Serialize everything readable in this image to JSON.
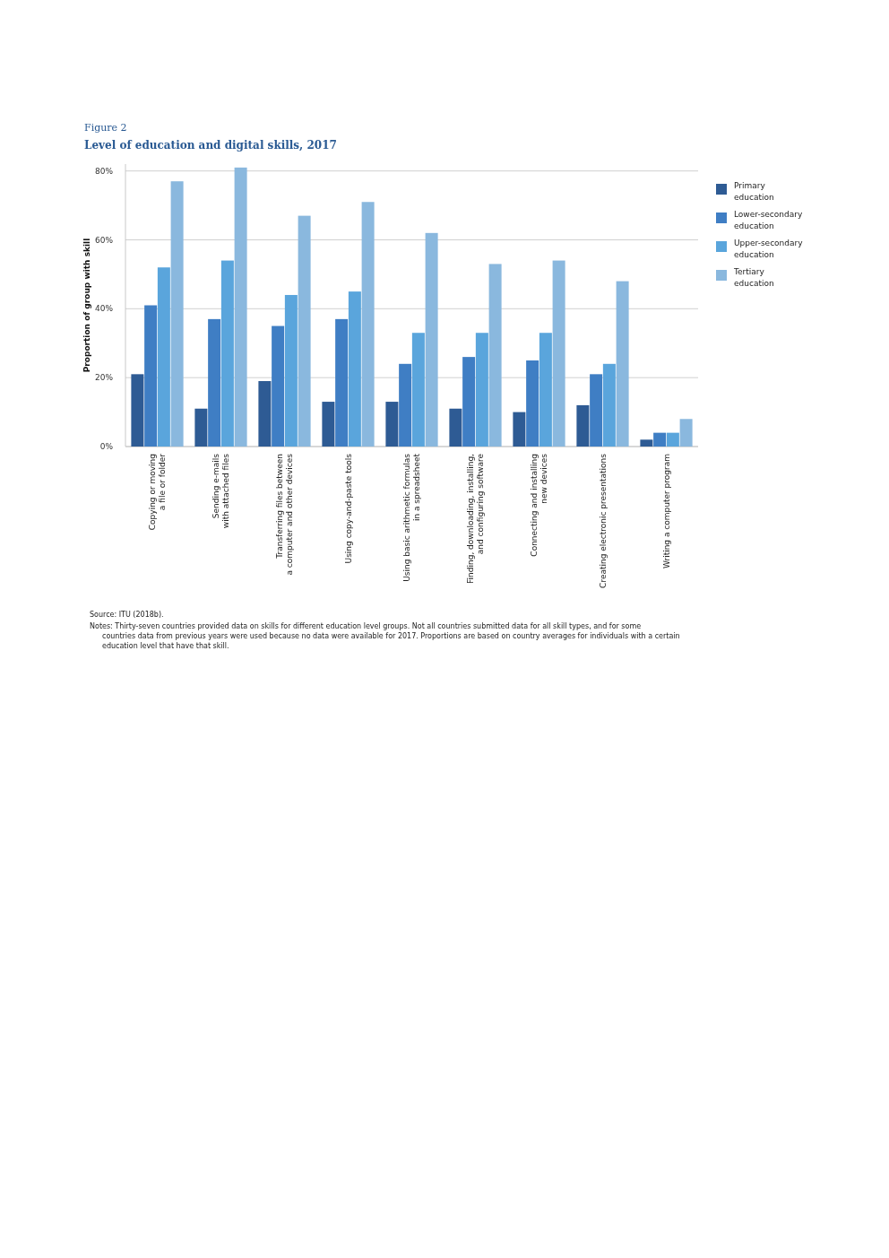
{
  "chart_data": {
    "type": "bar",
    "title": "Figure 2",
    "subtitle": "Level of education and digital skills, 2017",
    "ylabel": "Proportion of group with skill",
    "categories": [
      "Copying or moving\na file or folder",
      "Sending e-mails\nwith attached files",
      "Transferring files between\na computer and other devices",
      "Using copy-and-paste tools",
      "Using basic arithmetic formulas\nin a spreadsheet",
      "Finding, downloading, installing,\nand configuring software",
      "Connecting and installing\nnew devices",
      "Creating electronic presentations",
      "Writing a computer program"
    ],
    "series": [
      {
        "name": "Primary education",
        "color": "#2e5b94",
        "values": [
          21,
          11,
          19,
          13,
          13,
          11,
          10,
          12,
          2
        ]
      },
      {
        "name": "Lower-secondary education",
        "color": "#3f7ec4",
        "values": [
          41,
          37,
          35,
          37,
          24,
          26,
          25,
          21,
          4
        ]
      },
      {
        "name": "Upper-secondary education",
        "color": "#5aa5dc",
        "values": [
          52,
          54,
          44,
          45,
          33,
          33,
          33,
          24,
          4
        ]
      },
      {
        "name": "Tertiary education",
        "color": "#8ab8de",
        "values": [
          77,
          81,
          67,
          71,
          62,
          53,
          54,
          48,
          8
        ]
      }
    ],
    "ylim": [
      0,
      82
    ],
    "yticks": [
      {
        "value": 0,
        "label": "0%"
      },
      {
        "value": 20,
        "label": "20%"
      },
      {
        "value": 40,
        "label": "40%"
      },
      {
        "value": 60,
        "label": "60%"
      },
      {
        "value": 80,
        "label": "80%"
      }
    ],
    "grid": "y",
    "legend": "right",
    "annotations": [
      "Source: ITU (2018b).",
      "Notes: Thirty-seven countries provided data on skills for different education level groups. Not all countries submitted data for all skill types, and for some countries data from previous years were used because no data were available for 2017. Proportions are based on country averages for individuals with a certain education level that have that skill."
    ]
  }
}
